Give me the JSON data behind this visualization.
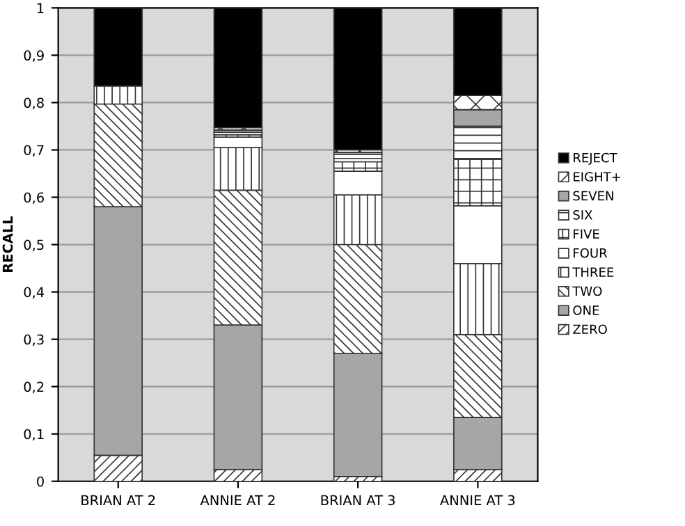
{
  "chart_data": {
    "type": "bar",
    "stacked": true,
    "ylabel": "RECALL",
    "categories": [
      "BRIAN AT 2",
      "ANNIE AT 2",
      "BRIAN AT 3",
      "ANNIE AT 3"
    ],
    "series": [
      {
        "name": "ZERO",
        "color": "#333333",
        "values": [
          0.055,
          0.025,
          0.01,
          0.025
        ]
      },
      {
        "name": "ONE",
        "color": "#a6a6a6",
        "values": [
          0.525,
          0.305,
          0.26,
          0.11
        ]
      },
      {
        "name": "TWO",
        "color": "#333333",
        "values": [
          0.217,
          0.285,
          0.23,
          0.175
        ]
      },
      {
        "name": "THREE",
        "color": "#333333",
        "values": [
          0.038,
          0.09,
          0.105,
          0.15
        ]
      },
      {
        "name": "FOUR",
        "color": "#ffffff",
        "values": [
          null,
          0.022,
          0.05,
          0.122
        ]
      },
      {
        "name": "FIVE",
        "color": "#333333",
        "values": [
          null,
          0.005,
          0.02,
          0.098
        ]
      },
      {
        "name": "SIX",
        "color": "#333333",
        "values": [
          null,
          0.005,
          0.015,
          0.07
        ]
      },
      {
        "name": "SEVEN",
        "color": "#a6a6a6",
        "values": [
          null,
          0.005,
          0.005,
          0.035
        ]
      },
      {
        "name": "EIGHT+",
        "color": "#333333",
        "values": [
          null,
          0.005,
          0.005,
          0.03
        ]
      },
      {
        "name": "REJECT",
        "color": "#000000",
        "values": [
          0.165,
          0.253,
          0.3,
          0.185
        ]
      }
    ],
    "ylim": [
      0,
      1
    ],
    "yticks": [
      0,
      {
        "value": 0.1,
        "label": "0,1"
      },
      {
        "value": 0.2,
        "label": "0,2"
      },
      {
        "value": 0.3,
        "label": "0,3"
      },
      {
        "value": 0.4,
        "label": "0,4"
      },
      {
        "value": 0.5,
        "label": "0,5"
      },
      {
        "value": 0.6,
        "label": "0,6"
      },
      {
        "value": 0.7,
        "label": "0,7"
      },
      {
        "value": 0.8,
        "label": "0,8"
      },
      {
        "value": 0.9,
        "label": "0,9"
      },
      1
    ],
    "grid": "y",
    "legend": "right"
  }
}
